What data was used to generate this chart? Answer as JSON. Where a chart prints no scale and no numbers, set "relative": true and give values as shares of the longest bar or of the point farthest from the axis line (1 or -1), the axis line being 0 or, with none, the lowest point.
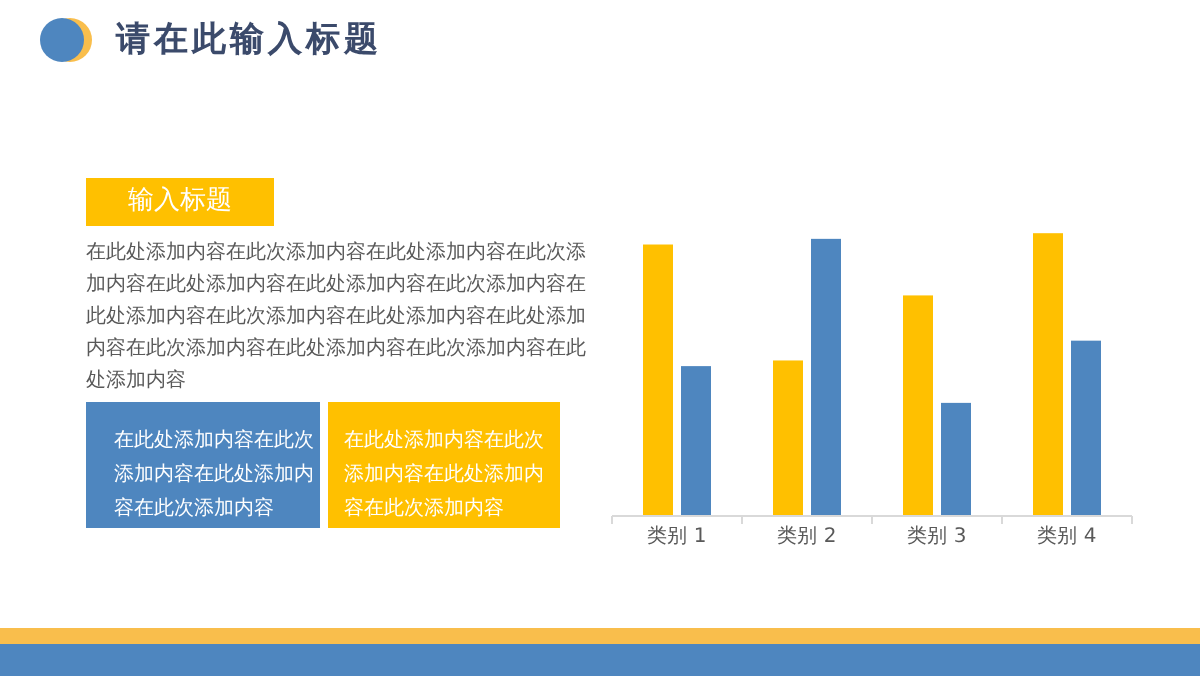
{
  "chart_data": {
    "type": "bar",
    "relative": true,
    "title": "请在此输入标题",
    "categories": [
      "类别 1",
      "类别 2",
      "类别 3",
      "类别 4"
    ],
    "series": [
      {
        "color": "#ffc000",
        "values": [
          0.96,
          0.55,
          0.78,
          1
        ]
      },
      {
        "color": "#4e86bf",
        "values": [
          0.53,
          0.98,
          0.4,
          0.62
        ]
      }
    ],
    "annotations": [
      "输入标题",
      "在此处添加内容在此次添加内容在此处添加内容在此次添加内容在此处添加内容在此处添加内容在此次添加内容在此处添加内容在此次添加内容在此处添加内容在此处添加内容在此次添加内容在此处添加内容在此次添加内容在此处添加内容",
      "在此处添加内容在此次添加内容在此处添加内容在此次添加内容",
      "在此处添加内容在此次添加内容在此处添加内容在此次添加内容"
    ]
  }
}
